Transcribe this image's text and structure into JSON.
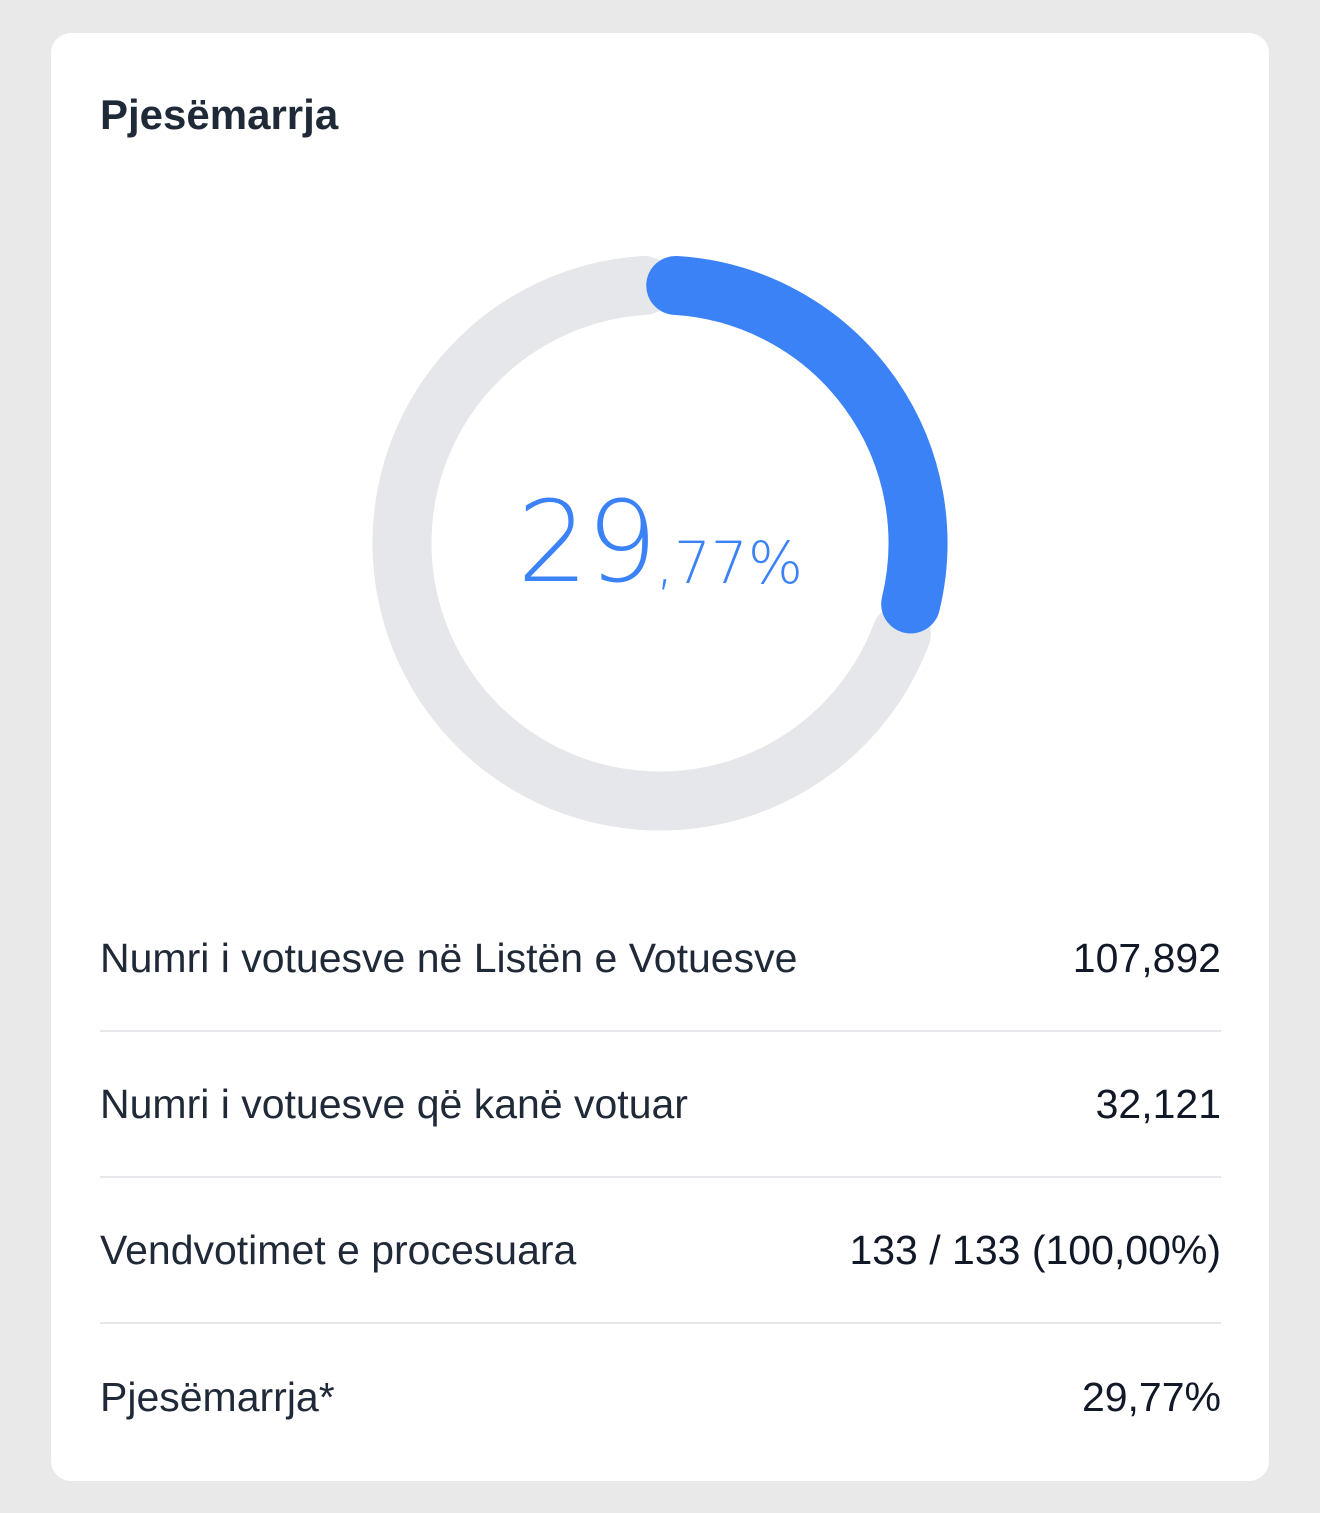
{
  "card": {
    "title": "Pjesëmarrja"
  },
  "turnout_chart": {
    "type": "donut",
    "percent": 29.77,
    "label_integer": "29",
    "label_fraction": ",77%",
    "colors": {
      "progress": "#3b82f6",
      "track": "#e5e7eb"
    }
  },
  "stats": [
    {
      "label": "Numri i votuesve në Listën e Votuesve",
      "value": "107,892"
    },
    {
      "label": "Numri i votuesve që kanë votuar",
      "value": "32,121"
    },
    {
      "label": "Vendvotimet e procesuara",
      "value": "133 / 133 (100,00%)"
    },
    {
      "label": "Pjesëmarrja*",
      "value": "29,77%"
    }
  ]
}
